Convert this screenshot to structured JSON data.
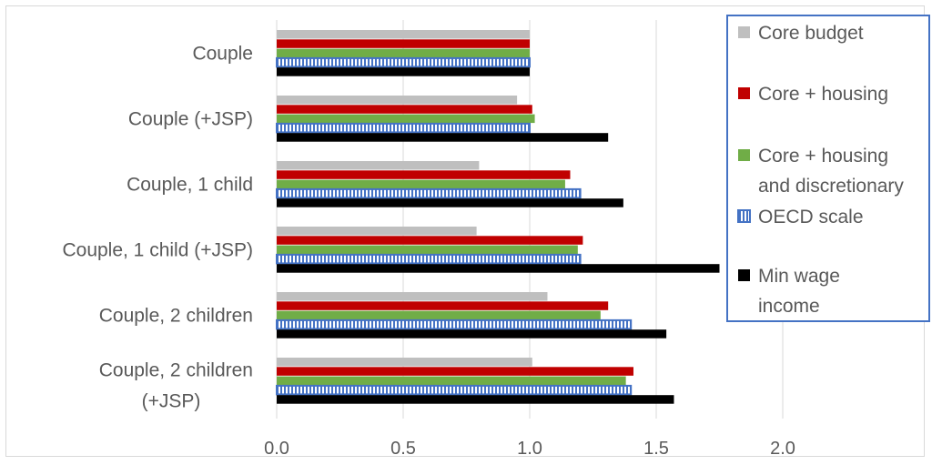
{
  "chart_data": {
    "type": "bar",
    "orientation": "horizontal",
    "categories": [
      "Couple",
      "Couple (+JSP)",
      "Couple, 1 child",
      "Couple, 1 child (+JSP)",
      "Couple, 2 children",
      "Couple, 2 children (+JSP)"
    ],
    "series": [
      {
        "name": "Core budget",
        "color": "#bfbfbf",
        "pattern": "solid",
        "values": [
          1.0,
          0.95,
          0.8,
          0.79,
          1.07,
          1.01
        ]
      },
      {
        "name": "Core + housing",
        "color": "#c00000",
        "pattern": "solid",
        "values": [
          1.0,
          1.01,
          1.16,
          1.21,
          1.31,
          1.41
        ]
      },
      {
        "name": "Core + housing and discretionary",
        "color": "#70ad47",
        "pattern": "solid",
        "values": [
          1.0,
          1.02,
          1.14,
          1.19,
          1.28,
          1.38
        ]
      },
      {
        "name": "OECD scale",
        "color": "#4472c4",
        "pattern": "vertical-stripes",
        "values": [
          1.0,
          1.0,
          1.2,
          1.2,
          1.4,
          1.4
        ]
      },
      {
        "name": "Min wage income",
        "color": "#000000",
        "pattern": "solid",
        "values": [
          1.0,
          1.31,
          1.37,
          1.75,
          1.54,
          1.57
        ]
      }
    ],
    "xlim": [
      0,
      2.5
    ],
    "xticks": [
      "0.0",
      "0.5",
      "1.0",
      "1.5",
      "2.0"
    ],
    "xtick_values": [
      0,
      0.5,
      1.0,
      1.5,
      2.0
    ],
    "title": "",
    "xlabel": "",
    "ylabel": "",
    "grid": "vertical",
    "legend_position": "right",
    "legend_border_color": "#4472c4"
  }
}
